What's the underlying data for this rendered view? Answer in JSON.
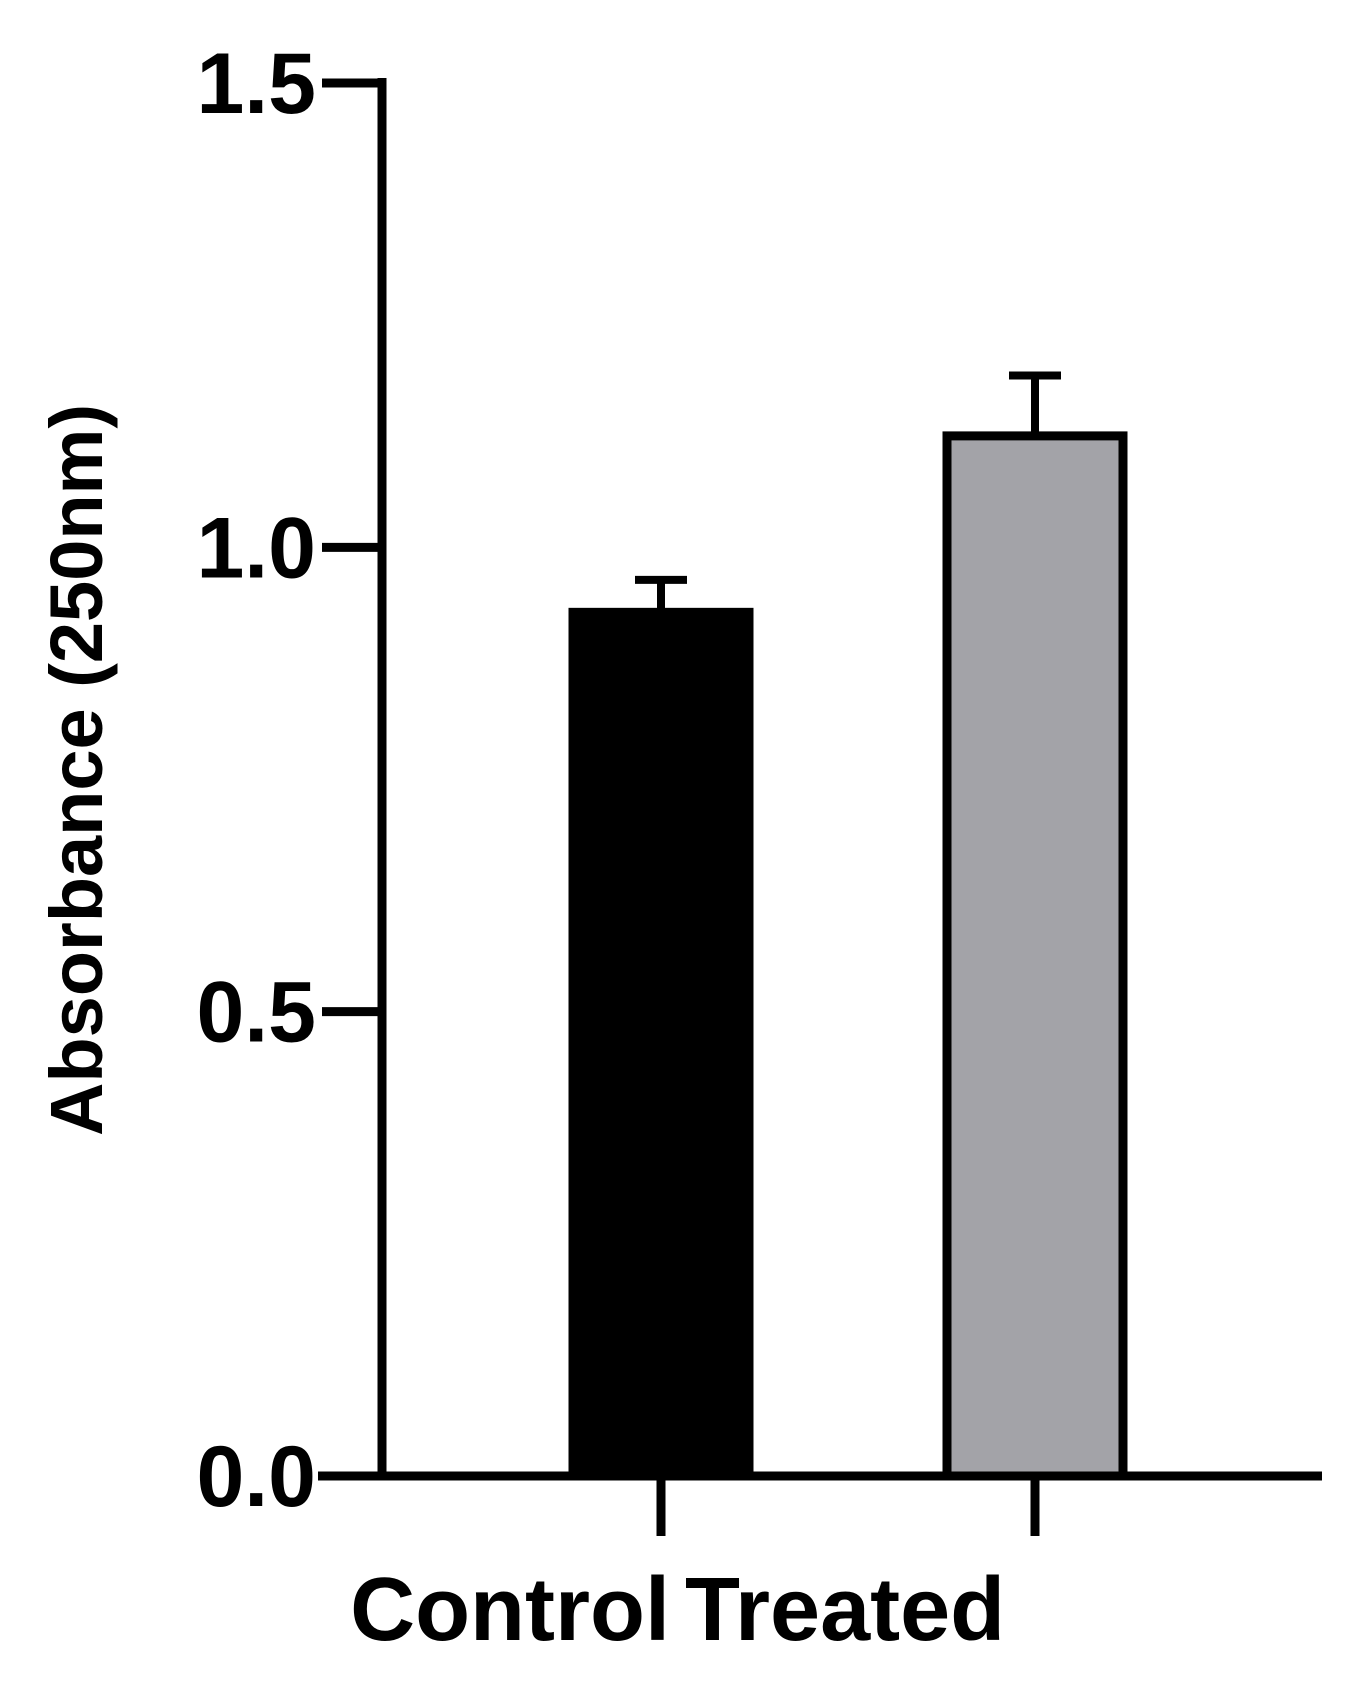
{
  "chart_data": {
    "type": "bar",
    "title": "",
    "xlabel": "",
    "ylabel": "Absorbance (250nm)",
    "categories": [
      "Control",
      "Treated"
    ],
    "values": [
      0.93,
      1.12
    ],
    "errors": [
      0.035,
      0.065
    ],
    "bar_colors": [
      "#000000",
      "#a3a3a8"
    ],
    "ylim": [
      0,
      1.5
    ],
    "yticks": [
      "0.0",
      "0.5",
      "1.0",
      "1.5"
    ],
    "grid": false,
    "legend": "none"
  }
}
